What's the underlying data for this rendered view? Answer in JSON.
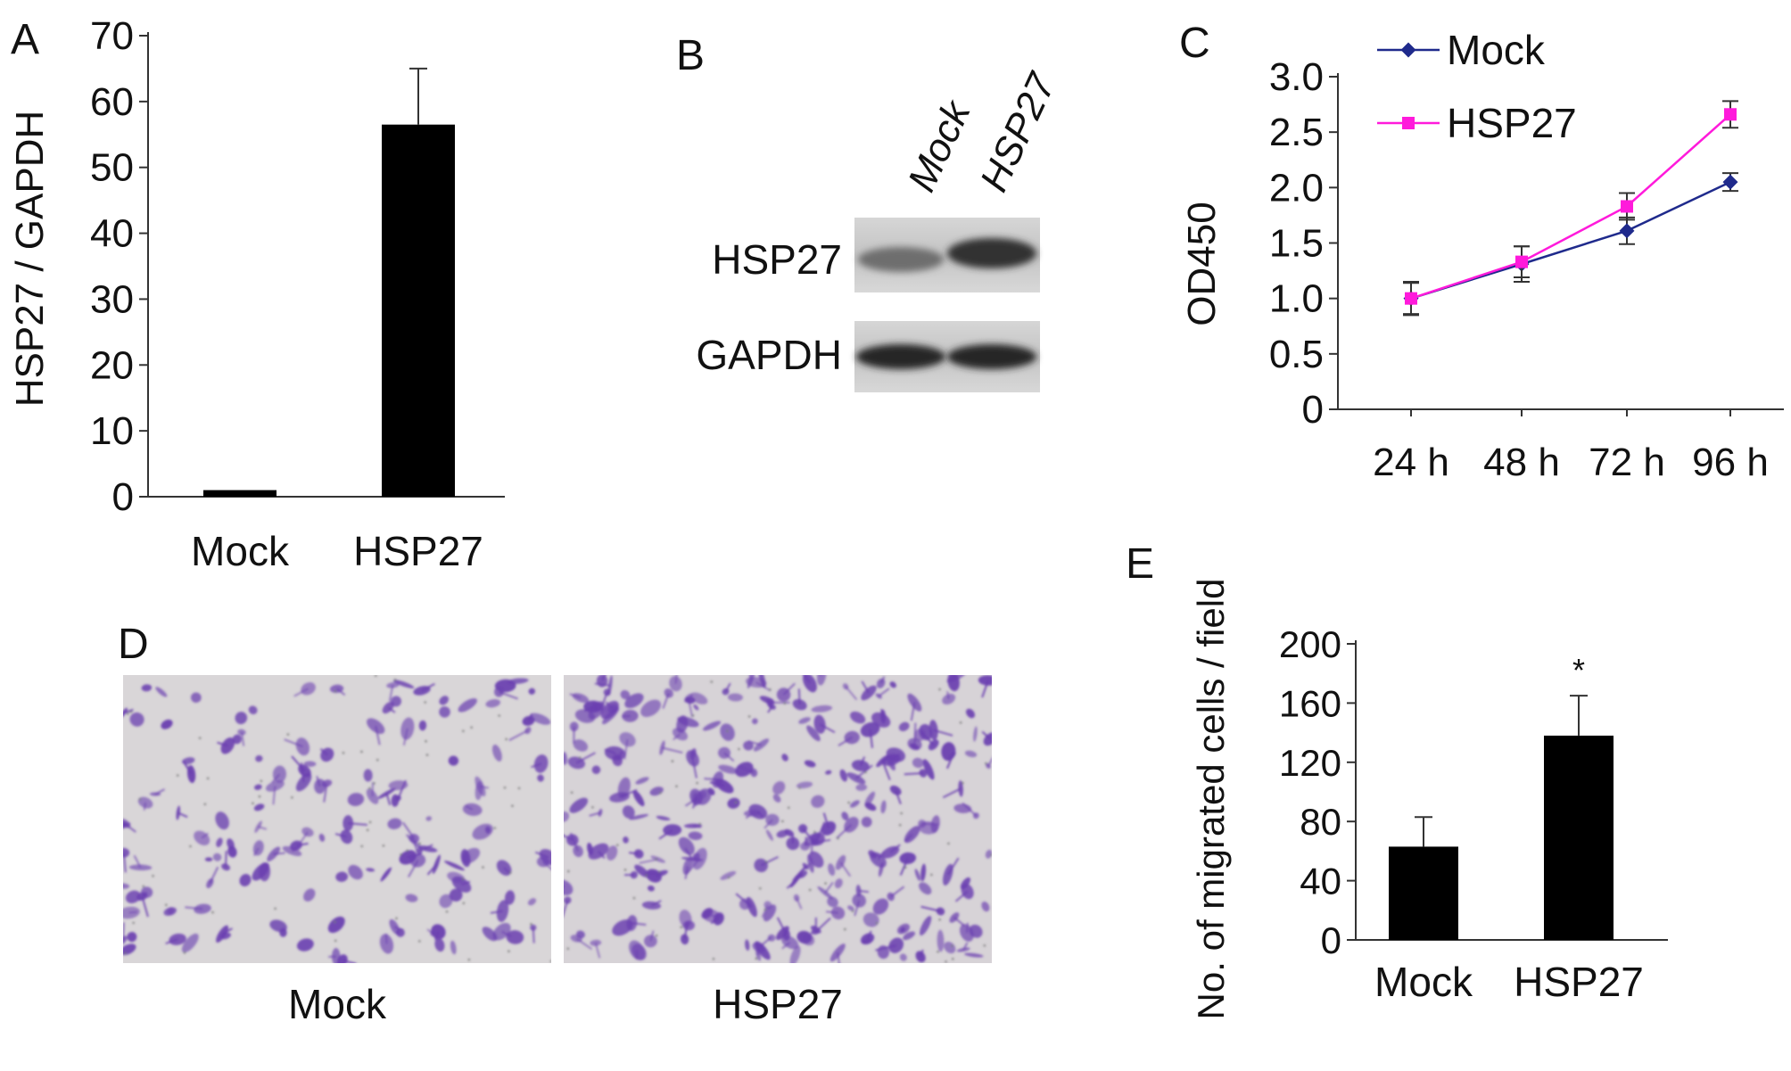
{
  "panels": {
    "A": {
      "letter": "A"
    },
    "B": {
      "letter": "B"
    },
    "C": {
      "letter": "C"
    },
    "D": {
      "letter": "D"
    },
    "E": {
      "letter": "E"
    }
  },
  "chart_data": [
    {
      "panel": "A",
      "type": "bar",
      "categories": [
        "Mock",
        "HSP27"
      ],
      "values": [
        1,
        56.5
      ],
      "errors": [
        0,
        8.5
      ],
      "ylabel": "HSP27 / GAPDH",
      "ylim": [
        0,
        70
      ],
      "yticks": [
        "0",
        "10",
        "20",
        "30",
        "40",
        "50",
        "60",
        "70"
      ]
    },
    {
      "panel": "C",
      "type": "line",
      "x": [
        "24 h",
        "48 h",
        "72 h",
        "96 h"
      ],
      "series": [
        {
          "name": "Mock",
          "color": "#1f2a8c",
          "values": [
            1.0,
            1.31,
            1.61,
            2.05
          ],
          "errors": [
            0.15,
            0.16,
            0.12,
            0.08
          ]
        },
        {
          "name": "HSP27",
          "color": "#ff1adb",
          "values": [
            1.0,
            1.33,
            1.83,
            2.66
          ],
          "errors": [
            0.14,
            0.14,
            0.12,
            0.12
          ]
        }
      ],
      "ylabel": "OD450",
      "ylim": [
        0,
        3.0
      ],
      "yticks": [
        "0",
        "0.5",
        "1.0",
        "1.5",
        "2.0",
        "2.5",
        "3.0"
      ],
      "legend_position": "top-left"
    },
    {
      "panel": "E",
      "type": "bar",
      "categories": [
        "Mock",
        "HSP27"
      ],
      "values": [
        63,
        138
      ],
      "errors": [
        20,
        27
      ],
      "annotations": [
        "",
        "*"
      ],
      "ylabel": "No. of migrated cells / field",
      "ylim": [
        0,
        200
      ],
      "yticks": [
        "0",
        "40",
        "80",
        "120",
        "160",
        "200"
      ]
    }
  ],
  "blot": {
    "lanes": [
      "Mock",
      "HSP27"
    ],
    "rows": [
      "HSP27",
      "GAPDH"
    ]
  },
  "micrographs": {
    "labels": [
      "Mock",
      "HSP27"
    ]
  },
  "colors": {
    "bar": "#000000",
    "axis": "#333333",
    "stain": "#6a3fb0",
    "micrograph_bg": "#d9d6d8"
  }
}
